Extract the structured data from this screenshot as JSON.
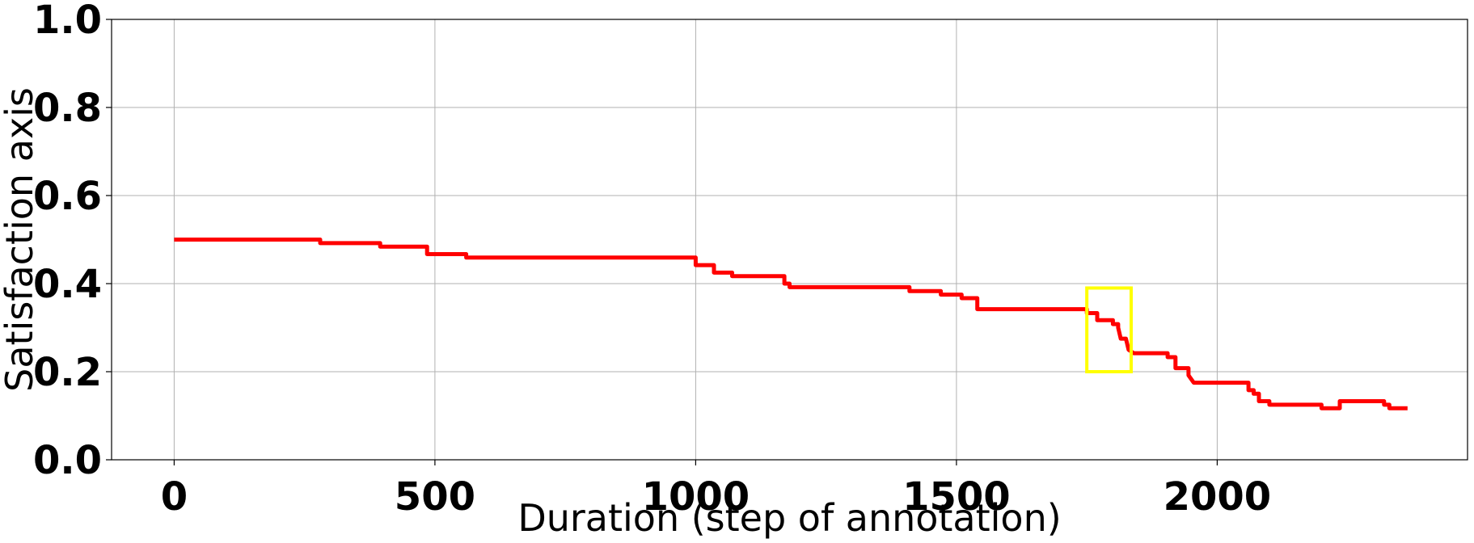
{
  "chart_data": {
    "type": "line",
    "title": "",
    "xlabel": "Duration (step of annotation)",
    "ylabel": "Satisfaction axis",
    "xlim": [
      -120,
      2480
    ],
    "ylim": [
      0.0,
      1.0
    ],
    "xticks": [
      0,
      500,
      1000,
      1500,
      2000
    ],
    "xtick_labels": [
      "0",
      "500",
      "1000",
      "1500",
      "2000"
    ],
    "yticks": [
      0.0,
      0.2,
      0.4,
      0.6,
      0.8,
      1.0
    ],
    "ytick_labels": [
      "0.0",
      "0.2",
      "0.4",
      "0.6",
      "0.8",
      "1.0"
    ],
    "grid": true,
    "legend": "none",
    "series": [
      {
        "color": "#ff0000",
        "x": [
          0,
          280,
          280,
          395,
          395,
          485,
          485,
          560,
          560,
          1000,
          1000,
          1035,
          1035,
          1070,
          1070,
          1170,
          1170,
          1180,
          1180,
          1410,
          1410,
          1470,
          1470,
          1510,
          1510,
          1540,
          1540,
          1750,
          1750,
          1770,
          1770,
          1780,
          1780,
          1800,
          1800,
          1810,
          1810,
          1815,
          1825,
          1830,
          1830,
          1840,
          1840,
          1905,
          1905,
          1920,
          1920,
          1945,
          1945,
          1955,
          1955,
          2060,
          2060,
          2070,
          2070,
          2080,
          2080,
          2100,
          2100,
          2200,
          2200,
          2235,
          2235,
          2320,
          2320,
          2330,
          2330,
          2340,
          2340,
          2365
        ],
        "y": [
          0.5,
          0.5,
          0.492,
          0.492,
          0.484,
          0.484,
          0.467,
          0.467,
          0.459,
          0.459,
          0.442,
          0.442,
          0.425,
          0.425,
          0.417,
          0.417,
          0.4,
          0.4,
          0.392,
          0.392,
          0.383,
          0.383,
          0.375,
          0.375,
          0.367,
          0.367,
          0.342,
          0.342,
          0.333,
          0.333,
          0.317,
          0.317,
          0.317,
          0.317,
          0.308,
          0.308,
          0.3,
          0.275,
          0.275,
          0.25,
          0.25,
          0.242,
          0.242,
          0.242,
          0.233,
          0.233,
          0.208,
          0.208,
          0.192,
          0.175,
          0.175,
          0.175,
          0.158,
          0.158,
          0.15,
          0.15,
          0.133,
          0.133,
          0.125,
          0.125,
          0.117,
          0.117,
          0.133,
          0.133,
          0.125,
          0.125,
          0.117,
          0.117,
          0.117,
          0.117
        ]
      }
    ],
    "annotations": [
      {
        "type": "rectangle",
        "color": "#ffff00",
        "x": [
          1750,
          1835
        ],
        "y": [
          0.2,
          0.39
        ]
      }
    ]
  }
}
